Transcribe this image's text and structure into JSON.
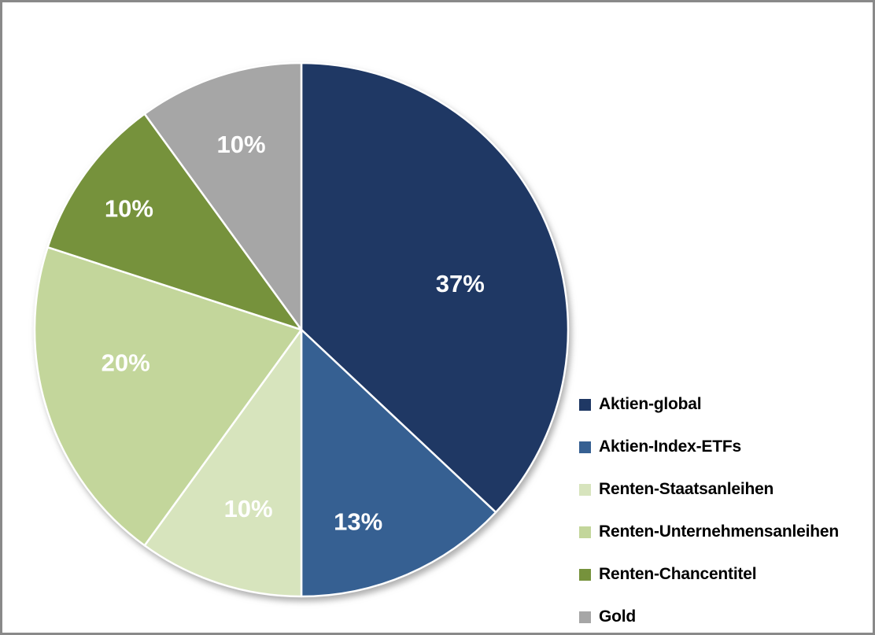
{
  "frame": {
    "background": "#FFFFFF",
    "border_color": "#898989"
  },
  "chart_data": {
    "type": "pie",
    "title": "",
    "legend_position": "right",
    "direction": "clockwise",
    "start_angle_deg": 0,
    "slice_border_color": "#FFFFFF",
    "data_label_color": "#FFFFFF",
    "legend_text_color": "#000000",
    "slices": [
      {
        "label": "Aktien-global",
        "value": 37,
        "display": "37%",
        "color": "#1F3864",
        "label_angle_deg": 73.8,
        "label_radius_frac": 0.62
      },
      {
        "label": "Aktien-Index-ETFs",
        "value": 13,
        "display": "13%",
        "color": "#366092",
        "label_angle_deg": 163.5,
        "label_radius_frac": 0.75
      },
      {
        "label": "Renten-Staatsanleihen",
        "value": 10,
        "display": "10%",
        "color": "#D7E4BD",
        "label_angle_deg": 196.5,
        "label_radius_frac": 0.7
      },
      {
        "label": "Renten-Unternehmensanleihen",
        "value": 20,
        "display": "20%",
        "color": "#C3D69B",
        "label_angle_deg": 259.4,
        "label_radius_frac": 0.67
      },
      {
        "label": "Renten-Chancentitel",
        "value": 10,
        "display": "10%",
        "color": "#76923C",
        "label_angle_deg": 305.1,
        "label_radius_frac": 0.79
      },
      {
        "label": "Gold",
        "value": 10,
        "display": "10%",
        "color": "#A6A6A6",
        "label_angle_deg": 342.0,
        "label_radius_frac": 0.73
      }
    ]
  }
}
